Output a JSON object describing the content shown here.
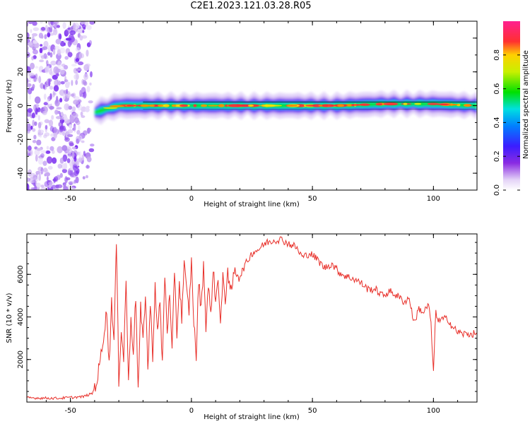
{
  "title": "C2E1.2023.121.03.28.R05",
  "chart_data": [
    {
      "type": "heatmap",
      "title": "C2E1.2023.121.03.28.R05",
      "xlabel": "Height of straight line (km)",
      "ylabel": "Frequency (Hz)",
      "xlim": [
        -68,
        118
      ],
      "ylim": [
        -50,
        50
      ],
      "x_ticks": [
        -50,
        0,
        50,
        100
      ],
      "y_ticks": [
        -40,
        -20,
        0,
        20,
        40
      ],
      "colorbar": {
        "label": "Normalized spectral amplitude",
        "range": [
          0,
          1
        ],
        "ticks": [
          "0.0",
          "0.2",
          "0.4",
          "0.6",
          "0.8"
        ],
        "colormap": "rainbow (white, violet, blue, cyan, green, yellow, red, magenta)"
      },
      "noise_region_x": [
        -68,
        -40
      ],
      "signal_band": {
        "start_x": -40,
        "x": [
          -40,
          -35,
          -30,
          -20,
          -10,
          0,
          10,
          20,
          40,
          60,
          80,
          100,
          118
        ],
        "center_frequency": [
          -4,
          -2,
          0,
          0,
          0,
          0,
          0,
          0,
          0,
          0,
          1,
          1,
          0
        ]
      }
    },
    {
      "type": "line",
      "xlabel": "Height of straight line (km)",
      "ylabel": "SNR (10 * v/v)",
      "xlim": [
        -68,
        118
      ],
      "ylim": [
        0,
        7900
      ],
      "x_ticks": [
        -50,
        0,
        50,
        100
      ],
      "y_ticks": [
        2000,
        4000,
        6000
      ],
      "color": "#e8302a",
      "series": [
        {
          "x": [
            -68,
            -55,
            -45,
            -41,
            -39,
            -37,
            -35,
            -34,
            -33,
            -32,
            -31,
            -30,
            -29,
            -28,
            -27,
            -26,
            -25,
            -24,
            -23,
            -22,
            -21,
            -20,
            -19,
            -18,
            -17,
            -16,
            -15,
            -14,
            -13,
            -12,
            -11,
            -10,
            -9,
            -8,
            -7,
            -6,
            -5,
            -4,
            -3,
            -2,
            -1,
            0,
            1,
            2,
            3,
            4,
            5,
            6,
            7,
            8,
            9,
            10,
            11,
            12,
            13,
            14,
            15,
            16,
            18,
            20,
            22,
            25,
            28,
            31,
            34,
            37,
            40,
            43,
            46,
            49,
            52,
            55,
            58,
            61,
            64,
            67,
            70,
            73,
            76,
            79,
            82,
            85,
            88,
            90,
            92,
            94,
            96,
            98,
            99,
            100,
            101,
            102,
            104,
            106,
            108,
            110,
            112,
            115,
            118
          ],
          "y": [
            200,
            180,
            250,
            400,
            1000,
            2500,
            4300,
            1700,
            4800,
            2800,
            7500,
            1000,
            3500,
            2000,
            5800,
            800,
            4000,
            2400,
            5000,
            500,
            4400,
            2800,
            5200,
            1500,
            4600,
            2200,
            5500,
            3200,
            4700,
            1800,
            6000,
            3400,
            5000,
            2200,
            6300,
            3200,
            5600,
            4000,
            6500,
            5200,
            4300,
            6600,
            3800,
            2100,
            5800,
            4300,
            6500,
            3600,
            5500,
            4000,
            6400,
            4600,
            6000,
            3600,
            5800,
            4800,
            6300,
            5000,
            6200,
            5900,
            6400,
            7000,
            7200,
            7500,
            7600,
            7650,
            7450,
            7300,
            6800,
            7000,
            6700,
            6300,
            6500,
            6100,
            5900,
            5800,
            5600,
            5300,
            5300,
            5000,
            5200,
            5000,
            4700,
            4900,
            3700,
            4400,
            4200,
            4600,
            3600,
            1400,
            4300,
            3800,
            3900,
            3900,
            3500,
            3300,
            3200,
            3200,
            3200
          ]
        }
      ]
    }
  ]
}
